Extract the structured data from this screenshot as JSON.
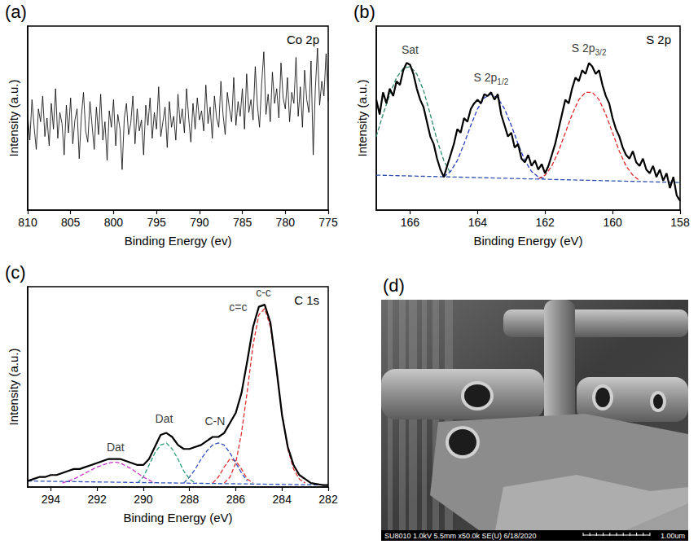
{
  "chart_data": [
    {
      "type": "line",
      "panel_label": "(a)",
      "title": "Co 2p",
      "x_label": "Binding Energy (ev)",
      "y_label": "Intensity (a.u.)",
      "xlim": [
        810,
        775
      ],
      "xticks": [
        810,
        805,
        800,
        795,
        790,
        785,
        780,
        775
      ],
      "ylim": [
        0,
        100
      ],
      "grid": false,
      "tick_labels": "x",
      "series": [
        {
          "color": "#000000",
          "line_style": "solid",
          "x": [
            810,
            809.75,
            809.5,
            809.25,
            809,
            808.75,
            808.5,
            808.25,
            808,
            807.75,
            807.5,
            807.25,
            807,
            806.75,
            806.5,
            806.25,
            806,
            805.75,
            805.5,
            805.25,
            805,
            804.75,
            804.5,
            804.25,
            804,
            803.75,
            803.5,
            803.25,
            803,
            802.75,
            802.5,
            802.25,
            802,
            801.75,
            801.5,
            801.25,
            801,
            800.75,
            800.5,
            800.25,
            800,
            799.75,
            799.5,
            799.25,
            799,
            798.75,
            798.5,
            798.25,
            798,
            797.75,
            797.5,
            797.25,
            797,
            796.75,
            796.5,
            796.25,
            796,
            795.75,
            795.5,
            795.25,
            795,
            794.75,
            794.5,
            794.25,
            794,
            793.75,
            793.5,
            793.25,
            793,
            792.75,
            792.5,
            792.25,
            792,
            791.75,
            791.5,
            791.25,
            791,
            790.75,
            790.5,
            790.25,
            790,
            789.75,
            789.5,
            789.25,
            789,
            788.75,
            788.5,
            788.25,
            788,
            787.75,
            787.5,
            787.25,
            787,
            786.75,
            786.5,
            786.25,
            786,
            785.75,
            785.5,
            785.25,
            785,
            784.75,
            784.5,
            784.25,
            784,
            783.75,
            783.5,
            783.25,
            783,
            782.75,
            782.5,
            782.25,
            782,
            781.75,
            781.5,
            781.25,
            781,
            780.75,
            780.5,
            780.25,
            780,
            779.75,
            779.5,
            779.25,
            779,
            778.75,
            778.5,
            778.25,
            778,
            777.75,
            777.5,
            777.25,
            777,
            776.75,
            776.5,
            776.25,
            776,
            775.75,
            775.5,
            775.25,
            775
          ],
          "values": [
            52,
            38,
            60,
            45,
            33,
            55,
            48,
            62,
            40,
            50,
            35,
            58,
            44,
            66,
            39,
            53,
            47,
            30,
            57,
            42,
            61,
            36,
            49,
            55,
            28,
            51,
            64,
            43,
            37,
            59,
            46,
            33,
            56,
            41,
            63,
            38,
            48,
            27,
            54,
            45,
            60,
            35,
            52,
            44,
            22,
            50,
            58,
            41,
            47,
            62,
            36,
            55,
            43,
            49,
            30,
            57,
            46,
            61,
            39,
            53,
            44,
            67,
            40,
            48,
            56,
            34,
            59,
            45,
            51,
            38,
            63,
            47,
            55,
            42,
            66,
            50,
            37,
            58,
            44,
            61,
            49,
            54,
            43,
            68,
            47,
            56,
            39,
            62,
            50,
            45,
            70,
            52,
            41,
            64,
            55,
            48,
            72,
            46,
            59,
            51,
            66,
            44,
            74,
            53,
            60,
            49,
            78,
            57,
            45,
            69,
            86,
            52,
            63,
            48,
            75,
            58,
            66,
            50,
            80,
            61,
            55,
            72,
            48,
            64,
            58,
            83,
            51,
            67,
            45,
            76,
            60,
            53,
            81,
            30,
            66,
            88,
            57,
            70,
            62,
            85,
            59
          ]
        }
      ],
      "annotations": []
    },
    {
      "type": "line",
      "panel_label": "(b)",
      "title": "S 2p",
      "x_label": "Binding Energy (eV)",
      "y_label": "Intensity (a.u.)",
      "xlim": [
        167,
        158
      ],
      "xticks": [
        166,
        164,
        162,
        160,
        158
      ],
      "ylim": [
        0,
        100
      ],
      "grid": false,
      "tick_labels": "x",
      "series": [
        {
          "color": "#000000",
          "line_style": "solid",
          "x": [
            167,
            166.9,
            166.8,
            166.7,
            166.6,
            166.5,
            166.4,
            166.3,
            166.2,
            166.1,
            166,
            165.9,
            165.8,
            165.7,
            165.6,
            165.5,
            165.4,
            165.3,
            165.2,
            165.1,
            165,
            164.9,
            164.8,
            164.7,
            164.6,
            164.5,
            164.4,
            164.3,
            164.2,
            164.1,
            164,
            163.9,
            163.8,
            163.7,
            163.6,
            163.5,
            163.4,
            163.3,
            163.2,
            163.1,
            163,
            162.9,
            162.8,
            162.7,
            162.6,
            162.5,
            162.4,
            162.3,
            162.2,
            162.1,
            162,
            161.9,
            161.8,
            161.7,
            161.6,
            161.5,
            161.4,
            161.3,
            161.2,
            161.1,
            161,
            160.9,
            160.8,
            160.7,
            160.6,
            160.5,
            160.4,
            160.3,
            160.2,
            160.1,
            160,
            159.9,
            159.8,
            159.7,
            159.6,
            159.5,
            159.4,
            159.3,
            159.2,
            159.1,
            159,
            158.9,
            158.8,
            158.7,
            158.6,
            158.5,
            158.4,
            158.3,
            158.2,
            158.1,
            158
          ],
          "values": [
            60,
            52,
            64,
            58,
            66,
            62,
            70,
            68,
            76,
            80,
            79,
            74,
            66,
            60,
            56,
            48,
            40,
            36,
            28,
            22,
            18,
            24,
            30,
            36,
            44,
            42,
            50,
            48,
            55,
            58,
            60,
            58,
            63,
            62,
            64,
            60,
            63,
            52,
            46,
            40,
            42,
            34,
            36,
            28,
            26,
            30,
            24,
            27,
            22,
            25,
            20,
            24,
            30,
            36,
            44,
            52,
            60,
            58,
            66,
            72,
            70,
            76,
            74,
            80,
            78,
            74,
            76,
            68,
            62,
            58,
            50,
            44,
            40,
            34,
            30,
            28,
            32,
            26,
            24,
            28,
            22,
            20,
            24,
            18,
            22,
            16,
            20,
            12,
            18,
            8,
            5
          ]
        },
        {
          "color": "#2f8a6a",
          "line_style": "dashed",
          "x": [
            167,
            166.8,
            166.6,
            166.4,
            166.2,
            166,
            165.8,
            165.6,
            165.4,
            165.2,
            165,
            164.8
          ],
          "values": [
            40,
            52,
            63,
            72,
            77,
            78,
            74,
            65,
            52,
            38,
            27,
            20
          ]
        },
        {
          "color": "#2a3fc0",
          "line_style": "dashed",
          "x": [
            165,
            164.8,
            164.6,
            164.4,
            164.2,
            164,
            163.8,
            163.6,
            163.4,
            163.2,
            163,
            162.8,
            162.6,
            162.4,
            162.2,
            162
          ],
          "values": [
            18,
            21,
            27,
            36,
            46,
            55,
            61,
            63,
            61,
            55,
            46,
            36,
            27,
            21,
            18,
            17
          ]
        },
        {
          "color": "#e02828",
          "line_style": "dashed",
          "x": [
            162.2,
            162,
            161.8,
            161.6,
            161.4,
            161.2,
            161,
            160.8,
            160.6,
            160.4,
            160.2,
            160,
            159.8,
            159.6,
            159.4,
            159.2
          ],
          "values": [
            17,
            19,
            24,
            32,
            42,
            52,
            60,
            64,
            64,
            60,
            52,
            42,
            32,
            24,
            19,
            16
          ]
        },
        {
          "color": "#3050b0",
          "line_style": "dashed",
          "x": [
            167,
            158
          ],
          "values": [
            19,
            15
          ]
        }
      ],
      "annotations": [
        {
          "text": "Sat",
          "x": 166.0,
          "y": 87
        },
        {
          "text": "S 2p",
          "subscript": "1/2",
          "x": 163.6,
          "y": 72
        },
        {
          "text": "S 2p",
          "subscript": "3/2",
          "x": 160.7,
          "y": 88
        }
      ]
    },
    {
      "type": "line",
      "panel_label": "(c)",
      "title": "C 1s",
      "x_label": "Binding Energy (eV)",
      "y_label": "Intensity (a.u.)",
      "xlim": [
        295,
        282
      ],
      "xticks": [
        294,
        292,
        290,
        288,
        286,
        284,
        282
      ],
      "ylim": [
        0,
        100
      ],
      "grid": false,
      "tick_labels": "x",
      "series": [
        {
          "color": "#000000",
          "line_style": "solid",
          "x": [
            295,
            294.75,
            294.5,
            294.25,
            294,
            293.75,
            293.5,
            293.25,
            293,
            292.75,
            292.5,
            292.25,
            292,
            291.75,
            291.5,
            291.25,
            291,
            290.75,
            290.5,
            290.25,
            290,
            289.75,
            289.5,
            289.25,
            289,
            288.75,
            288.5,
            288.25,
            288,
            287.75,
            287.5,
            287.25,
            287,
            286.75,
            286.5,
            286.25,
            286,
            285.75,
            285.5,
            285.25,
            285,
            284.75,
            284.5,
            284.25,
            284,
            283.75,
            283.5,
            283.25,
            283,
            282.75,
            282.5,
            282.25,
            282
          ],
          "values": [
            3,
            4,
            5,
            5,
            6,
            6,
            7,
            8,
            9,
            9,
            10,
            11,
            12,
            13,
            14,
            14,
            14,
            13,
            12,
            11,
            11,
            14,
            20,
            26,
            27,
            25,
            21,
            19,
            19,
            20,
            21,
            23,
            25,
            25,
            27,
            32,
            37,
            47,
            63,
            80,
            90,
            91,
            82,
            60,
            36,
            20,
            11,
            6,
            4,
            2,
            1.5,
            1,
            1
          ]
        },
        {
          "color": "#e03030",
          "line_style": "dashed",
          "x": [
            286.5,
            286.25,
            286,
            285.75,
            285.5,
            285.25,
            285,
            284.75,
            284.5,
            284.25,
            284,
            283.75,
            283.5,
            283.25,
            283
          ],
          "values": [
            2,
            5,
            12,
            27,
            48,
            71,
            86,
            89,
            80,
            60,
            37,
            19,
            9,
            4,
            2
          ]
        },
        {
          "color": "#e03030",
          "line_style": "dashed",
          "x": [
            287,
            286.75,
            286.5,
            286.25,
            286,
            285.75,
            285.5,
            285.25
          ],
          "values": [
            2,
            5,
            10,
            14,
            13,
            9,
            4,
            2
          ]
        },
        {
          "color": "#3050c0",
          "line_style": "dashed",
          "x": [
            288.25,
            288,
            287.75,
            287.5,
            287.25,
            287,
            286.75,
            286.5,
            286.25,
            286,
            285.75,
            285.5
          ],
          "values": [
            2,
            5,
            9,
            14,
            18,
            21,
            22,
            21,
            17,
            12,
            7,
            3
          ]
        },
        {
          "color": "#2a9a7a",
          "line_style": "dashed",
          "x": [
            290.25,
            290,
            289.75,
            289.5,
            289.25,
            289,
            288.75,
            288.5,
            288.25,
            288,
            287.75
          ],
          "values": [
            2,
            5,
            11,
            17,
            21,
            22,
            19,
            14,
            8,
            4,
            2
          ]
        },
        {
          "color": "#cc33cc",
          "line_style": "dashed",
          "x": [
            293.5,
            293,
            292.5,
            292,
            291.5,
            291.25,
            291,
            290.5,
            290,
            289.5
          ],
          "values": [
            2,
            4,
            7,
            10,
            12,
            12.5,
            12,
            9,
            5,
            2
          ]
        },
        {
          "color": "#3355bb",
          "line_style": "dashed",
          "x": [
            295,
            282
          ],
          "values": [
            3,
            1
          ]
        }
      ],
      "annotations": [
        {
          "text": "Dat",
          "x": 291.2,
          "y": 20
        },
        {
          "text": "Dat",
          "x": 289.1,
          "y": 34
        },
        {
          "text": "C-N",
          "x": 286.9,
          "y": 33
        },
        {
          "text": "c=c",
          "x": 285.9,
          "y": 90
        },
        {
          "text": "c-c",
          "x": 284.8,
          "y": 97
        }
      ]
    }
  ],
  "panel_d": {
    "panel_label": "(d)",
    "info_bar": "SU8010 1.0kV 5.5mm x50.0k SE(U) 6/18/2020",
    "scale_bar": "1.00um"
  }
}
